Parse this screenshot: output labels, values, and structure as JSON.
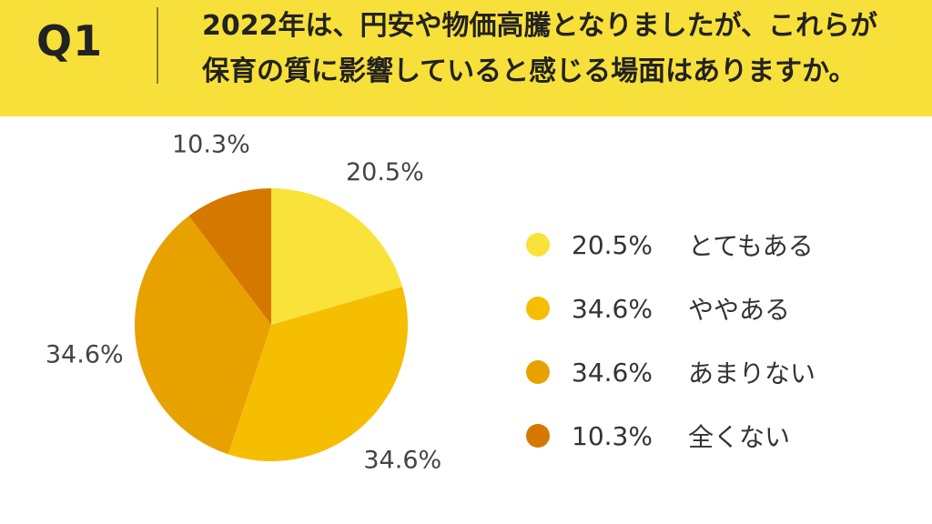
{
  "header": {
    "q_label": "Q1",
    "question_line1": "2022年は、円安や物価高騰となりましたが、これらが",
    "question_line2": "保育の質に影響していると感じる場面はありますか。"
  },
  "chart_data": {
    "type": "pie",
    "start_angle": "top (12 o'clock)",
    "direction": "clockwise",
    "slices": [
      {
        "label": "とてもある",
        "value": 20.5,
        "label_text": "20.5%",
        "color": "#f9e33a"
      },
      {
        "label": "ややある",
        "value": 34.6,
        "label_text": "34.6%",
        "color": "#f6be00"
      },
      {
        "label": "あまりない",
        "value": 34.6,
        "label_text": "34.6%",
        "color": "#e8a200"
      },
      {
        "label": "全くない",
        "value": 10.3,
        "label_text": "10.3%",
        "color": "#d57800"
      }
    ],
    "legend_placement": "right"
  },
  "colors": {
    "header_bg": "#f8e03a",
    "text": "#333333"
  }
}
